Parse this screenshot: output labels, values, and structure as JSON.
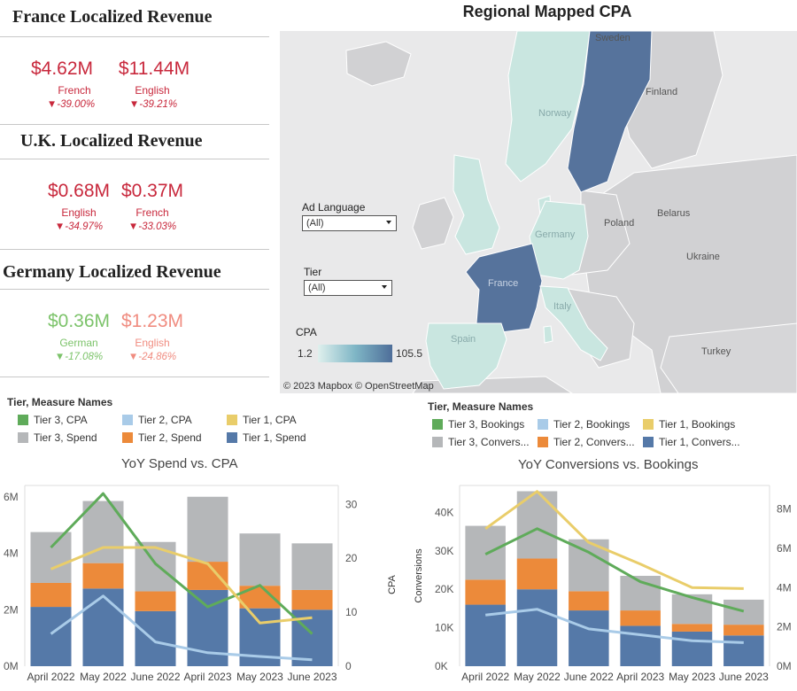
{
  "kpi": {
    "france": {
      "title": "France Localized Revenue",
      "items": [
        {
          "value": "$4.62M",
          "lang": "French",
          "change": "▼-39.00%"
        },
        {
          "value": "$11.44M",
          "lang": "English",
          "change": "▼-39.21%"
        }
      ]
    },
    "uk": {
      "title": "U.K. Localized Revenue",
      "items": [
        {
          "value": "$0.68M",
          "lang": "English",
          "change": "▼-34.97%"
        },
        {
          "value": "$0.37M",
          "lang": "French",
          "change": "▼-33.03%"
        }
      ]
    },
    "germany": {
      "title": "Germany Localized Revenue",
      "items": [
        {
          "value": "$0.36M",
          "lang": "German",
          "change": "▼-17.08%"
        },
        {
          "value": "$1.23M",
          "lang": "English",
          "change": "▼-24.86%"
        }
      ]
    }
  },
  "map": {
    "title": "Regional Mapped CPA",
    "filters": {
      "ad_language": {
        "label": "Ad Language",
        "value": "(All)"
      },
      "tier": {
        "label": "Tier",
        "value": "(All)"
      }
    },
    "cpa_legend": {
      "label": "CPA",
      "min": "1.2",
      "max": "105.5",
      "color_low": "#d5ece8",
      "color_high": "#4e6e99"
    },
    "country_labels": [
      "Sweden",
      "Finland",
      "Norway",
      "Belarus",
      "Poland",
      "Germany",
      "Ukraine",
      "France",
      "Italy",
      "Spain",
      "Turkey"
    ],
    "attribution": "© 2023 Mapbox © OpenStreetMap"
  },
  "legend_left": {
    "heading": "Tier, Measure Names",
    "items": [
      {
        "label": "Tier 3, CPA",
        "color": "#5fab5a"
      },
      {
        "label": "Tier 2, CPA",
        "color": "#a9cbe8"
      },
      {
        "label": "Tier 1, CPA",
        "color": "#e9cd6a"
      },
      {
        "label": "Tier 3, Spend",
        "color": "#b5b7b9"
      },
      {
        "label": "Tier 2, Spend",
        "color": "#ec8a3a"
      },
      {
        "label": "Tier 1, Spend",
        "color": "#5579a8"
      }
    ]
  },
  "legend_right": {
    "heading": "Tier, Measure Names",
    "items": [
      {
        "label": "Tier 3, Bookings",
        "color": "#5fab5a"
      },
      {
        "label": "Tier 2, Bookings",
        "color": "#a9cbe8"
      },
      {
        "label": "Tier 1, Bookings",
        "color": "#e9cd6a"
      },
      {
        "label": "Tier 3, Convers...",
        "color": "#b5b7b9"
      },
      {
        "label": "Tier 2, Convers...",
        "color": "#ec8a3a"
      },
      {
        "label": "Tier 1, Convers...",
        "color": "#5579a8"
      }
    ]
  },
  "chart_data": [
    {
      "type": "bar",
      "title": "YoY Spend vs. CPA",
      "categories": [
        "April 2022",
        "May 2022",
        "June 2022",
        "April 2023",
        "May 2023",
        "June 2023"
      ],
      "stacked_series": [
        {
          "name": "Tier 1, Spend",
          "values": [
            2.1,
            2.75,
            1.95,
            2.7,
            2.05,
            2.0
          ]
        },
        {
          "name": "Tier 2, Spend",
          "values": [
            0.85,
            0.9,
            0.7,
            1.0,
            0.8,
            0.7
          ]
        },
        {
          "name": "Tier 3, Spend",
          "values": [
            1.8,
            2.2,
            1.75,
            2.3,
            1.85,
            1.65
          ]
        }
      ],
      "line_series": [
        {
          "name": "Tier 3, CPA",
          "values": [
            22,
            32,
            19,
            11,
            15,
            6
          ]
        },
        {
          "name": "Tier 1, CPA",
          "values": [
            18,
            22,
            22,
            19,
            8,
            9
          ]
        },
        {
          "name": "Tier 2, CPA",
          "values": [
            6,
            13,
            4.5,
            2.5,
            1.8,
            1.2
          ]
        }
      ],
      "y_left": {
        "min": 0,
        "max": 6.4,
        "ticks": [
          "0M",
          "2M",
          "4M",
          "6M"
        ],
        "tick_values": [
          0,
          2,
          4,
          6
        ]
      },
      "y_right": {
        "min": 0,
        "max": 33.5,
        "ticks": [
          "0",
          "10",
          "20",
          "30"
        ],
        "tick_values": [
          0,
          10,
          20,
          30
        ]
      },
      "ylabel_right": "CPA"
    },
    {
      "type": "bar",
      "title": "YoY Conversions vs. Bookings",
      "categories": [
        "April 2022",
        "May 2022",
        "June 2022",
        "April 2023",
        "May 2023",
        "June 2023"
      ],
      "stacked_series": [
        {
          "name": "Tier 1, Conversions",
          "values": [
            16000,
            20000,
            14500,
            10500,
            9000,
            8000
          ]
        },
        {
          "name": "Tier 2, Conversions",
          "values": [
            6500,
            8000,
            5000,
            4000,
            2000,
            2800
          ]
        },
        {
          "name": "Tier 3, Conversions",
          "values": [
            14000,
            17500,
            13500,
            9000,
            7700,
            6500
          ]
        }
      ],
      "line_series": [
        {
          "name": "Tier 1, Bookings",
          "values": [
            7.0,
            8.9,
            6.3,
            5.2,
            4.0,
            3.95
          ]
        },
        {
          "name": "Tier 3, Bookings",
          "values": [
            5.7,
            7.0,
            5.8,
            4.3,
            3.5,
            2.8
          ]
        },
        {
          "name": "Tier 2, Bookings",
          "values": [
            2.6,
            2.9,
            1.9,
            1.6,
            1.3,
            1.2
          ]
        }
      ],
      "y_left": {
        "min": 0,
        "max": 47000,
        "ticks": [
          "0K",
          "10K",
          "20K",
          "30K",
          "40K"
        ],
        "tick_values": [
          0,
          10000,
          20000,
          30000,
          40000
        ]
      },
      "y_right": {
        "min": 0,
        "max": 9.2,
        "ticks": [
          "0M",
          "2M",
          "4M",
          "6M",
          "8M"
        ],
        "tick_values": [
          0,
          2,
          4,
          6,
          8
        ]
      },
      "ylabel_left": "Conversions"
    }
  ]
}
